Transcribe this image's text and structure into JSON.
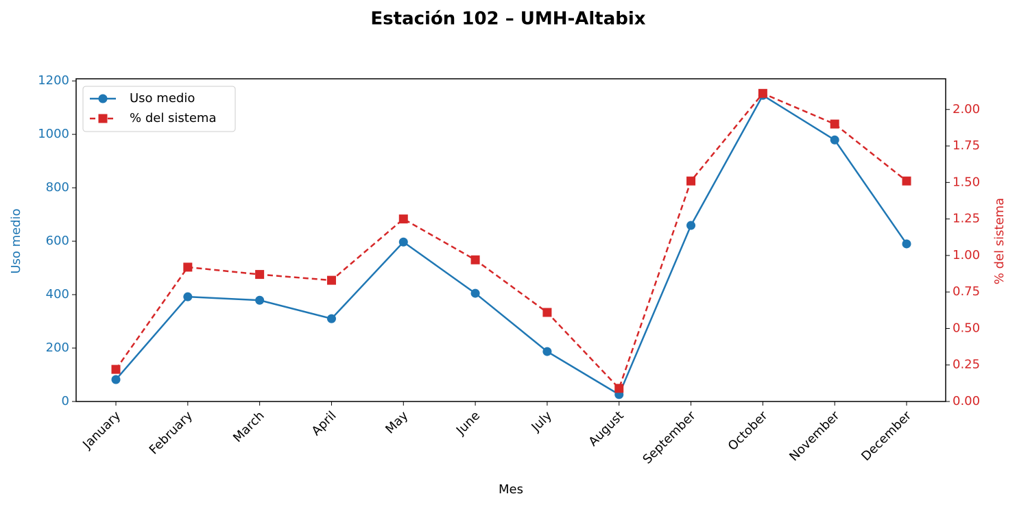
{
  "chart_data": {
    "type": "line",
    "title": "Estación 102 – UMH-Altabix",
    "xlabel": "Mes",
    "ylabel": "Uso medio",
    "y2label": "% del sistema",
    "categories": [
      "January",
      "February",
      "March",
      "April",
      "May",
      "June",
      "July",
      "August",
      "September",
      "October",
      "November",
      "December"
    ],
    "series": [
      {
        "name": "Uso medio",
        "color": "#1f77b4",
        "marker": "circle",
        "linestyle": "solid",
        "values": [
          82,
          392,
          379,
          310,
          597,
          405,
          187,
          26,
          659,
          1146,
          979,
          590
        ]
      },
      {
        "name": "% del sistema",
        "color": "#d62728",
        "marker": "square",
        "linestyle": "dashed",
        "axis": "y2",
        "values": [
          0.22,
          0.92,
          0.87,
          0.83,
          1.25,
          0.97,
          0.61,
          0.09,
          1.51,
          2.11,
          1.9,
          1.51
        ]
      }
    ],
    "ylim": [
      0,
      1208
    ],
    "yticks": [
      0,
      200,
      400,
      600,
      800,
      1000,
      1200
    ],
    "y2lim": [
      0,
      2.21
    ],
    "y2ticks": [
      {
        "value": 0,
        "label": "0.00"
      },
      {
        "value": 0.25,
        "label": "0.25"
      },
      {
        "value": 0.5,
        "label": "0.50"
      },
      {
        "value": 0.75,
        "label": "0.75"
      },
      {
        "value": 1,
        "label": "1.00"
      },
      {
        "value": 1.25,
        "label": "1.25"
      },
      {
        "value": 1.5,
        "label": "1.50"
      },
      {
        "value": 1.75,
        "label": "1.75"
      },
      {
        "value": 2,
        "label": "2.00"
      }
    ],
    "legend": "upper-left",
    "grid": false
  }
}
